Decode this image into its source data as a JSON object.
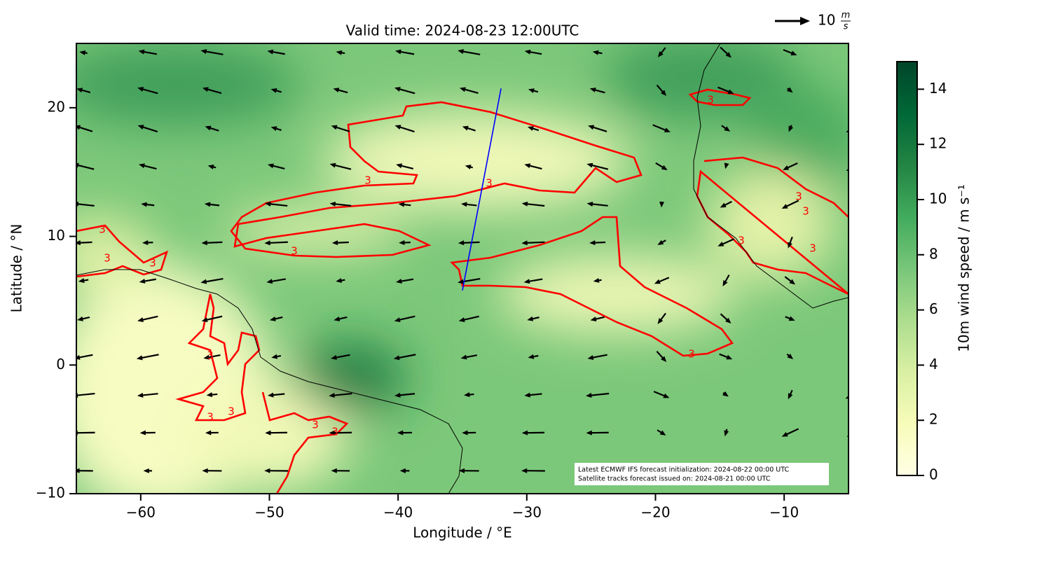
{
  "chart_data": {
    "type": "map",
    "title": "Valid time: 2024-08-23 12:00UTC",
    "xlabel": "Longitude / °E",
    "ylabel": "Latitude / °N",
    "xlim": [
      -65,
      -5
    ],
    "ylim": [
      -10,
      25
    ],
    "xticks": [
      {
        "value": -60,
        "label": "−60"
      },
      {
        "value": -50,
        "label": "−50"
      },
      {
        "value": -40,
        "label": "−40"
      },
      {
        "value": -30,
        "label": "−30"
      },
      {
        "value": -20,
        "label": "−20"
      },
      {
        "value": -10,
        "label": "−10"
      }
    ],
    "yticks": [
      {
        "value": -10,
        "label": "−10"
      },
      0,
      10,
      20
    ],
    "contour": {
      "level": 3,
      "color": "#ff0000"
    },
    "track": {
      "color": "#0000ff",
      "lon": [
        -35.0,
        -32.0
      ],
      "lat": [
        5.8,
        21.5
      ]
    },
    "quiver_key": {
      "value": 10,
      "unit_top": "m",
      "unit_bottom": "s"
    },
    "colorbar": {
      "label": "10m wind speed / m s⁻¹",
      "lim": [
        0,
        15
      ],
      "ticks": [
        0,
        2,
        4,
        6,
        8,
        10,
        12,
        14
      ],
      "colors": [
        "#ffffe5",
        "#f7fcb9",
        "#d9f0a3",
        "#addd8e",
        "#78c679",
        "#41ab5d",
        "#238443",
        "#006837",
        "#004529"
      ]
    },
    "annotation": [
      "Latest ECMWF IFS forecast initialization: 2024-08-22 00:00 UTC",
      "Satellite tracks forecast issued on: 2024-08-21 00:00 UTC"
    ]
  }
}
